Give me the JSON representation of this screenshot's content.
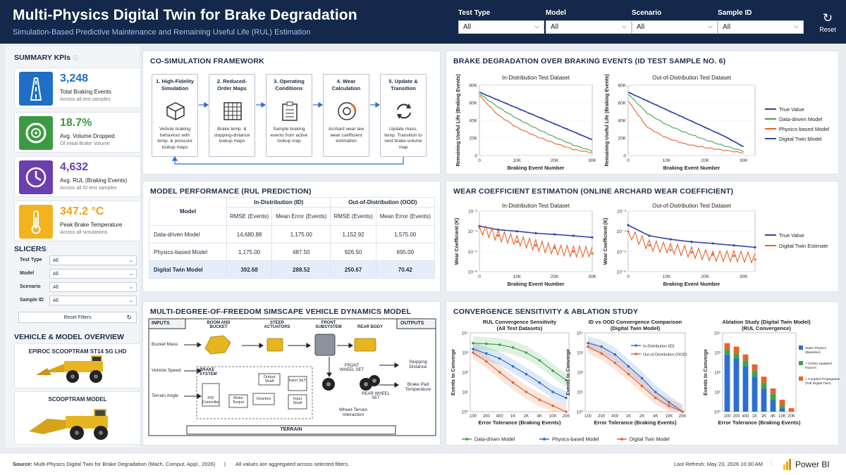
{
  "header": {
    "title": "Multi-Physics Digital Twin for Brake Degradation",
    "subtitle": "Simulation-Based Predictive Maintenance and Remaining Useful Life (RUL) Estimation",
    "filters": [
      {
        "label": "Test Type",
        "value": "All"
      },
      {
        "label": "Model",
        "value": "All"
      },
      {
        "label": "Scenario",
        "value": "All"
      },
      {
        "label": "Sample ID",
        "value": "All"
      }
    ],
    "reset_label": "Reset"
  },
  "left": {
    "kpi_title": "SUMMARY KPIs",
    "kpis": [
      {
        "value": "3,248",
        "label": "Total Braking Events",
        "sub": "Across all test samples",
        "color": "#1e6fc5",
        "icon": "road-icon"
      },
      {
        "value": "18.7%",
        "label": "Avg. Volume Dropped",
        "sub": "Of initial Brake Volume",
        "color": "#3d9a44",
        "icon": "brake-disc-icon"
      },
      {
        "value": "4,632",
        "label": "Avg. RUL (Braking Events)",
        "sub": "Across all ID test samples",
        "color": "#6a3fb0",
        "icon": "clock-icon"
      },
      {
        "value": "347.2 °C",
        "label": "Peak Brake Temperature",
        "sub": "Across all simulations",
        "color": "#f2b31e",
        "icon": "thermometer-icon"
      }
    ],
    "slicers_title": "SLICERS",
    "slicers": [
      {
        "label": "Test Type",
        "value": "All"
      },
      {
        "label": "Model",
        "value": "All"
      },
      {
        "label": "Scenario",
        "value": "All"
      },
      {
        "label": "Sample ID",
        "value": "All"
      }
    ],
    "reset_filters": "Reset Filters",
    "overview_title": "VEHICLE & MODEL OVERVIEW",
    "vehicle_1": "EPIROC SCOOPTRAM ST14 SG LHD",
    "vehicle_2": "SCOOPTRAM MODEL"
  },
  "framework": {
    "title": "CO-SIMULATION FRAMEWORK",
    "steps": [
      {
        "title": "1. High-Fidelity Simulation",
        "desc": "Vehicle braking behaviour with temp. & pressure lookup maps"
      },
      {
        "title": "2. Reduced-Order Maps",
        "desc": "Brake temp. & stopping-distance lookup maps"
      },
      {
        "title": "3. Operating Conditions",
        "desc": "Sample braking events from active lookup map"
      },
      {
        "title": "4. Wear Calculation",
        "desc": "Archard wear law wear coefficient estimation"
      },
      {
        "title": "5. Update & Transition",
        "desc": "Update mass, temp. Transition to next brake-volume map"
      }
    ]
  },
  "performance": {
    "title": "MODEL PERFORMANCE (RUL PREDICTION)",
    "col_model": "Model",
    "group_id": "In-Distribution (ID)",
    "group_ood": "Out-of-Distribution (OOD)",
    "rmse": "RMSE (Events)",
    "mean_error": "Mean Error (Events)",
    "rows": [
      {
        "model": "Data-driven Model",
        "id_rmse": "14,680.88",
        "id_me": "1,175.00",
        "ood_rmse": "1,152.92",
        "ood_me": "1,575.00"
      },
      {
        "model": "Physics-based Model",
        "id_rmse": "1,175.00",
        "id_me": "487.50",
        "ood_rmse": "926.50",
        "ood_me": "695.00"
      },
      {
        "model": "Digital Twin Model",
        "id_rmse": "392.68",
        "id_me": "288.52",
        "ood_rmse": "250.67",
        "ood_me": "70.42"
      }
    ]
  },
  "dynamics": {
    "title": "MULTI-DEGREE-OF-FREEDOM SIMSCAPE VEHICLE DYNAMICS MODEL",
    "inputs_label": "INPUTS",
    "outputs_label": "OUTPUTS",
    "inputs": [
      "Bucket Mass",
      "Vehicle Speed",
      "Terrain Angle"
    ],
    "outputs": [
      "Stopping Distance",
      "Brake Pad Temperature"
    ],
    "components": {
      "boom": "BOOM AND BUCKET",
      "steer": "STEER ACTUATORS",
      "front": "FRONT SUBSYSTEM",
      "rear": "REAR BODY",
      "front_wheel": "FRONT WHEEL SET",
      "rear_wheel": "REAR WHEEL SET",
      "brake_system": "BRAKE SYSTEM",
      "pid": "PID Controller",
      "motor": "Motor Torque",
      "gearbox": "Gearbox",
      "output_shaft": "Output Shaft",
      "input_set": "Input SET",
      "input_shaft": "Input Shaft",
      "wheel_terrain": "Wheel-Terrain Interaction",
      "terrain": "TERRAIN"
    }
  },
  "degradation": {
    "title": "BRAKE DEGRADATION OVER BRAKING EVENTS (ID TEST SAMPLE NO. 6)",
    "subtitles": [
      "In-Distribution Test Dataset",
      "Out-of-Distribution Test Dataset"
    ],
    "xlabel": "Braking Event Number",
    "ylabel": "Remaining Useful Life (Braking Events)",
    "xticks": [
      "0",
      "10K",
      "20K",
      "30K"
    ],
    "yticks": [
      "0",
      "20K",
      "40K",
      "60K",
      "80K"
    ],
    "legend": [
      "True Value",
      "Data-driven Model",
      "Physics-based Model",
      "Digital Twin Model"
    ]
  },
  "wear": {
    "title": "WEAR COEFFICIENT ESTIMATION (ONLINE ARCHARD WEAR COEFFICIENT)",
    "subtitles": [
      "In-Distribution Test Dataset",
      "Out-of-Distribution Test Dataset"
    ],
    "xlabel": "Braking Event Number",
    "ylabel": "Wear Coefficient (K)",
    "xticks": [
      "0",
      "10K",
      "20K",
      "30K"
    ],
    "yticks": [
      "10⁻³",
      "10⁻⁴",
      "10⁻⁵",
      "10⁻⁶"
    ],
    "legend": [
      "True Value",
      "Digital Twin Estimate"
    ]
  },
  "convergence": {
    "title": "CONVERGENCE SENSITIVITY & ABLATION STUDY",
    "sub1": [
      "RUL Convergence Sensitivity",
      "(All Test Datasets)"
    ],
    "sub2": [
      "ID vs OOD Convergence Comparison",
      "(Digital Twin Model)"
    ],
    "sub3": [
      "Ablation Study (Digital Twin Model)",
      "(RUL Convergence)"
    ],
    "xlabel": "Error Tolerance (Braking Events)",
    "ylabel": "Events to Converge",
    "xticks": [
      "100",
      "200",
      "400",
      "1K",
      "2K",
      "4K",
      "10K",
      "20K"
    ],
    "yticks": [
      "10⁰",
      "10¹",
      "10²",
      "10³",
      "10⁴"
    ],
    "legend2": [
      "In-Distribution (ID)",
      "Out-of-Distribution (OOD)"
    ],
    "legend3": [
      "Static Physics (Baseline)",
      "+ Online-Updated Fixed K",
      "+ Coupled Propagation (Full Digital Twin)"
    ],
    "bottom_legend": [
      "Data-driven Model",
      "Physics-based Model",
      "Digital Twin Model"
    ]
  },
  "footer": {
    "source_label": "Source:",
    "source": "Multi-Physics Digital Twin for Brake Degradation (Mach. Comput. Appl., 2026)",
    "sep": "|",
    "note": "All values are aggregated across selected filters.",
    "refresh": "Last Refresh: May 23, 2026 10:30 AM",
    "brand": "Power BI"
  },
  "colors": {
    "navy": "#13284a",
    "true_value": "#3a3fa8",
    "data_driven": "#3ca64a",
    "physics": "#e8622a",
    "digital_twin": "#3344aa",
    "blue": "#2b6fd1"
  },
  "chart_data": [
    {
      "type": "line",
      "title": "In-Distribution Test Dataset",
      "xlabel": "Braking Event Number",
      "ylabel": "Remaining Useful Life (Braking Events)",
      "xlim": [
        0,
        30000
      ],
      "ylim": [
        0,
        80000
      ],
      "x": [
        0,
        5000,
        10000,
        15000,
        20000,
        25000,
        30000
      ],
      "series": [
        {
          "name": "True Value",
          "values": [
            72000,
            63000,
            54000,
            45000,
            36000,
            27000,
            18000
          ]
        },
        {
          "name": "Data-driven Model",
          "values": [
            70000,
            55000,
            42000,
            31000,
            21000,
            12000,
            5000
          ]
        },
        {
          "name": "Physics-based Model",
          "values": [
            68000,
            46000,
            32000,
            22000,
            14000,
            7000,
            3000
          ]
        },
        {
          "name": "Digital Twin Model",
          "values": [
            72000,
            63000,
            54000,
            45000,
            36000,
            27000,
            18000
          ]
        }
      ]
    },
    {
      "type": "line",
      "title": "Out-of-Distribution Test Dataset",
      "xlabel": "Braking Event Number",
      "ylabel": "Remaining Useful Life (Braking Events)",
      "xlim": [
        0,
        33000
      ],
      "ylim": [
        0,
        80000
      ],
      "x": [
        0,
        5000,
        10000,
        15000,
        20000,
        25000,
        30000
      ],
      "series": [
        {
          "name": "True Value",
          "values": [
            72000,
            62000,
            52000,
            42000,
            32000,
            22000,
            10000
          ]
        },
        {
          "name": "Data-driven Model",
          "values": [
            70000,
            48000,
            35000,
            26000,
            18000,
            11000,
            5000
          ]
        },
        {
          "name": "Physics-based Model",
          "values": [
            62000,
            32000,
            20000,
            13000,
            9000,
            6000,
            3000
          ]
        },
        {
          "name": "Digital Twin Model",
          "values": [
            72000,
            62000,
            52000,
            42000,
            32000,
            22000,
            10000
          ]
        }
      ]
    },
    {
      "type": "line",
      "title": "In-Distribution Test Dataset",
      "xlabel": "Braking Event Number",
      "ylabel": "Wear Coefficient (K)",
      "ylim": [
        1e-06,
        0.001
      ],
      "log_y": true,
      "x": [
        0,
        5000,
        10000,
        15000,
        20000,
        25000,
        30000
      ],
      "series": [
        {
          "name": "True Value",
          "values": [
            0.00018,
            0.00012,
            0.0001,
            8e-05,
            7e-05,
            6e-05,
            5e-05
          ]
        },
        {
          "name": "Digital Twin Estimate",
          "values": [
            0.00016,
            6e-05,
            3e-05,
            2e-05,
            1.5e-05,
            1e-05,
            8e-06
          ]
        }
      ]
    },
    {
      "type": "line",
      "title": "Out-of-Distribution Test Dataset",
      "xlabel": "Braking Event Number",
      "ylabel": "Wear Coefficient (K)",
      "ylim": [
        1e-06,
        0.001
      ],
      "log_y": true,
      "x": [
        0,
        5000,
        10000,
        15000,
        20000,
        25000,
        30000
      ],
      "series": [
        {
          "name": "True Value",
          "values": [
            0.0002,
            6e-05,
            4e-05,
            3e-05,
            2.5e-05,
            2e-05,
            1.6e-05
          ]
        },
        {
          "name": "Digital Twin Estimate",
          "values": [
            0.0001,
            2e-05,
            1.2e-05,
            9e-06,
            7e-06,
            6e-06,
            4e-06
          ]
        }
      ]
    },
    {
      "type": "line",
      "title": "RUL Convergence Sensitivity (All Test Datasets)",
      "xlabel": "Error Tolerance (Braking Events)",
      "ylabel": "Events to Converge",
      "log_y": true,
      "categories": [
        "100",
        "200",
        "400",
        "1K",
        "2K",
        "4K",
        "10K",
        "20K"
      ],
      "series": [
        {
          "name": "Data-driven Model",
          "values": [
            3000,
            2800,
            2500,
            1800,
            1000,
            400,
            120,
            40
          ]
        },
        {
          "name": "Physics-based Model",
          "values": [
            1500,
            900,
            500,
            200,
            80,
            30,
            10,
            5
          ]
        },
        {
          "name": "Digital Twin Model",
          "values": [
            1000,
            350,
            100,
            30,
            10,
            4,
            2,
            1
          ]
        }
      ]
    },
    {
      "type": "line",
      "title": "ID vs OOD Convergence Comparison (Digital Twin Model)",
      "xlabel": "Error Tolerance (Braking Events)",
      "ylabel": "Events to Converge",
      "log_y": true,
      "categories": [
        "100",
        "200",
        "400",
        "1K",
        "2K",
        "4K",
        "10K",
        "20K"
      ],
      "series": [
        {
          "name": "In-Distribution (ID)",
          "values": [
            3000,
            2000,
            800,
            200,
            50,
            10,
            3,
            1
          ]
        },
        {
          "name": "Out-of-Distribution (OOD)",
          "values": [
            2000,
            900,
            300,
            80,
            20,
            5,
            2,
            1
          ]
        }
      ]
    },
    {
      "type": "bar",
      "title": "Ablation Study (Digital Twin Model) (RUL Convergence)",
      "xlabel": "Error Tolerance (Braking Events)",
      "ylabel": "Events to Converge",
      "log_y": true,
      "categories": [
        "100",
        "200",
        "400",
        "1K",
        "2K",
        "4K",
        "10K",
        "20K"
      ],
      "series": [
        {
          "name": "Static Physics (Baseline)",
          "values": [
            800,
            500,
            200,
            60,
            15,
            4,
            1.5,
            1
          ]
        },
        {
          "name": "+ Online-Updated Fixed K",
          "values": [
            1500,
            900,
            400,
            120,
            30,
            8,
            2,
            1
          ]
        },
        {
          "name": "+ Coupled Propagation (Full Digital Twin)",
          "values": [
            3000,
            2000,
            800,
            250,
            60,
            15,
            4,
            1.5
          ]
        }
      ]
    }
  ]
}
